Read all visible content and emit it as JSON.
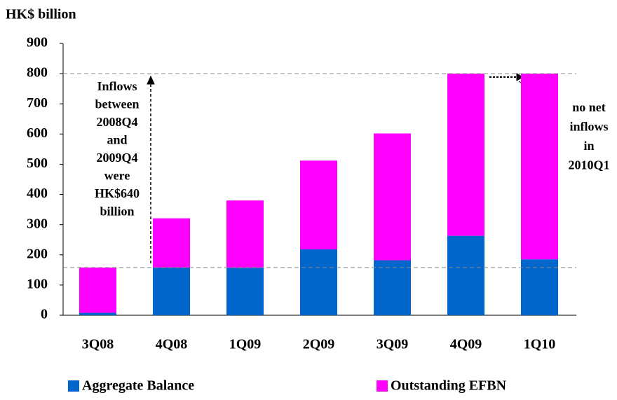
{
  "chart_data": {
    "type": "stacked_bar",
    "y_axis_label": "HK$ billion",
    "categories": [
      "3Q08",
      "4Q08",
      "1Q09",
      "2Q09",
      "3Q09",
      "4Q09",
      "1Q10"
    ],
    "series": [
      {
        "name": "Aggregate Balance",
        "color": "#0066cc",
        "values": [
          8,
          158,
          157,
          218,
          182,
          263,
          185
        ]
      },
      {
        "name": "Outstanding EFBN",
        "color": "#ff00ff",
        "values": [
          150,
          163,
          223,
          294,
          420,
          537,
          615
        ]
      }
    ],
    "ylim": [
      0,
      900
    ],
    "yticks": [
      0,
      100,
      200,
      300,
      400,
      500,
      600,
      700,
      800,
      900
    ],
    "reference_lines": [
      158,
      800
    ],
    "annotations": [
      [
        "Inflows",
        "between",
        "2008Q4",
        "and",
        "2009Q4",
        "were",
        "HK$640",
        "billion"
      ],
      [
        "no net",
        "inflows",
        "in",
        "2010Q1"
      ]
    ]
  }
}
